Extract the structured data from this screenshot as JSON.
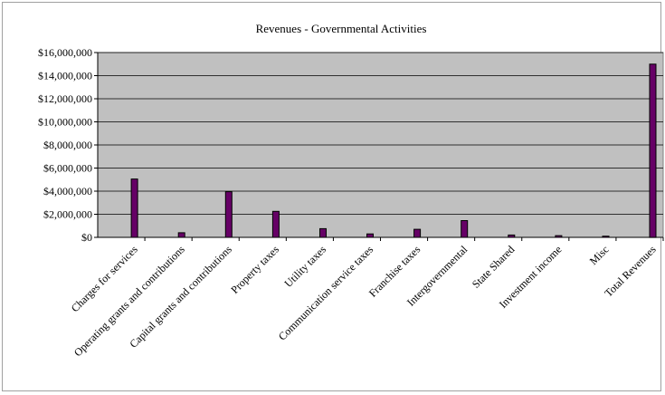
{
  "chart_data": {
    "type": "bar",
    "title": "Revenues - Governmental Activities",
    "xlabel": "",
    "ylabel": "",
    "ylim": [
      0,
      16000000
    ],
    "yticks": [
      0,
      2000000,
      4000000,
      6000000,
      8000000,
      10000000,
      12000000,
      14000000,
      16000000
    ],
    "ytick_labels": [
      "$0",
      "$2,000,000",
      "$4,000,000",
      "$6,000,000",
      "$8,000,000",
      "$10,000,000",
      "$12,000,000",
      "$14,000,000",
      "$16,000,000"
    ],
    "categories": [
      "Charges for services",
      "Operating grants and contributions",
      "Capital grants and contributions",
      "Property taxes",
      "Utility taxes",
      "Communication service taxes",
      "Franchise taxes",
      "Intergovernmental",
      "State Shared",
      "Investment income",
      "Misc",
      "Total Revenues"
    ],
    "values": [
      5050000,
      400000,
      3950000,
      2250000,
      750000,
      300000,
      700000,
      1450000,
      200000,
      150000,
      100000,
      15000000
    ],
    "grid": true,
    "legend": "none",
    "colors": {
      "bar_fill": "#660066",
      "bar_edge": "#000000",
      "plot_bg": "#c0c0c0",
      "gridline": "#000000"
    }
  }
}
